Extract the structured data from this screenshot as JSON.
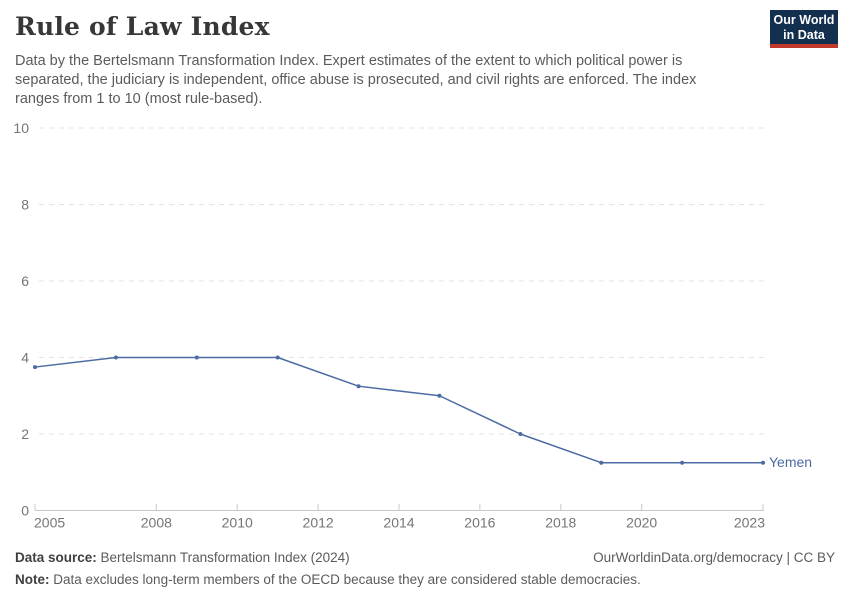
{
  "header": {
    "title": "Rule of Law Index",
    "subtitle": "Data by the Bertelsmann Transformation Index. Expert estimates of the extent to which political power is separated, the judiciary is independent, office abuse is prosecuted, and civil rights are enforced. The index ranges from 1 to 10 (most rule-based).",
    "logo_line1": "Our World",
    "logo_line2": "in Data"
  },
  "chart_data": {
    "type": "line",
    "title": "Rule of Law Index",
    "x": [
      2005,
      2007,
      2009,
      2011,
      2013,
      2015,
      2017,
      2019,
      2021,
      2023
    ],
    "series": [
      {
        "name": "Yemen",
        "values": [
          3.75,
          4.0,
          4.0,
          4.0,
          3.25,
          3.0,
          2.0,
          1.25,
          1.25,
          1.25
        ],
        "color": "#4c6ba3"
      }
    ],
    "xlabel": "",
    "ylabel": "",
    "xlim": [
      2005,
      2023
    ],
    "ylim": [
      0,
      10
    ],
    "xticks": [
      2005,
      2008,
      2010,
      2012,
      2014,
      2016,
      2018,
      2020,
      2023
    ],
    "yticks": [
      0,
      2,
      4,
      6,
      8,
      10
    ],
    "grid": true,
    "legend_position": "end-of-line"
  },
  "footer": {
    "data_source_label": "Data source:",
    "data_source_text": " Bertelsmann Transformation Index (2024)",
    "note_label": "Note:",
    "note_text": " Data excludes long-term members of the OECD because they are considered stable democracies.",
    "link": "OurWorldinData.org/democracy | CC BY"
  },
  "colors": {
    "accent_line": "#4c6ba3",
    "grid": "#e3e3e3",
    "axis": "#c8c8c8",
    "tick_label": "#757575",
    "logo_bg": "#14304f",
    "logo_red": "#c0392b"
  }
}
